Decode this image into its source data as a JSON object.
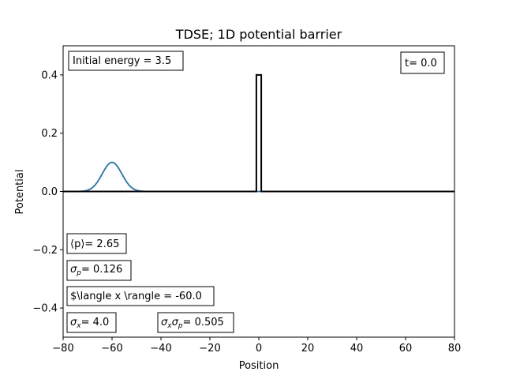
{
  "chart_data": {
    "type": "line",
    "title": "TDSE; 1D potential barrier",
    "xlabel": "Position",
    "ylabel": "Potential",
    "xlim": [
      -80,
      80
    ],
    "ylim": [
      -0.5,
      0.5
    ],
    "x_ticks": [
      -80,
      -60,
      -40,
      -20,
      0,
      20,
      40,
      60,
      80
    ],
    "x_tick_labels": [
      "−80",
      "−60",
      "−40",
      "−20",
      "0",
      "20",
      "40",
      "60",
      "80"
    ],
    "y_ticks": [
      -0.4,
      -0.2,
      0.0,
      0.2,
      0.4
    ],
    "y_tick_labels": [
      "−0.4",
      "−0.2",
      "0.0",
      "0.2",
      "0.4"
    ],
    "grid": false,
    "series": [
      {
        "color": "#1f77b4",
        "kind": "gaussian",
        "center": -60,
        "amplitude": 0.1,
        "sigma": 4.0,
        "x_range": [
          -80,
          80
        ]
      },
      {
        "color": "#000000",
        "kind": "step",
        "x": [
          -80,
          -1,
          -1,
          1,
          1,
          80
        ],
        "y": [
          0,
          0,
          0.4,
          0.4,
          0,
          0
        ]
      }
    ],
    "annotations": {
      "energy": "Initial energy = 3.5",
      "time": "t= 0.0",
      "p_mean_label": "⟨p⟩",
      "p_mean_value": "= 2.65",
      "sigma_p_sym": "σ",
      "sigma_p_sub": "p",
      "sigma_p_value": "= 0.126",
      "x_mean": "$\\langle x \\rangle = -60.0",
      "sigma_x_sym": "σ",
      "sigma_x_sub": "x",
      "sigma_x_value": "= 4.0",
      "sxsp_sym1": "σ",
      "sxsp_sub1": "x",
      "sxsp_sym2": "σ",
      "sxsp_sub2": "p",
      "sxsp_value": "= 0.505"
    }
  }
}
